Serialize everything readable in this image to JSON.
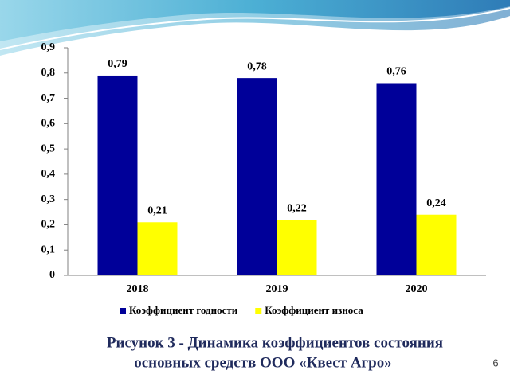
{
  "chart_data": {
    "type": "bar",
    "categories": [
      "2018",
      "2019",
      "2020"
    ],
    "series": [
      {
        "name": "Коэффициент годности",
        "color": "#000099",
        "values": [
          0.79,
          0.78,
          0.76
        ],
        "value_labels": [
          "0,79",
          "0,78",
          "0,76"
        ]
      },
      {
        "name": "Коэффициент износа",
        "color": "#ffff00",
        "values": [
          0.21,
          0.22,
          0.24
        ],
        "value_labels": [
          "0,21",
          "0,22",
          "0,24"
        ]
      }
    ],
    "ylim": [
      0,
      0.9
    ],
    "yticks": [
      0,
      {
        "value": 0.1,
        "label": "0,1"
      },
      {
        "value": 0.2,
        "label": "0,2"
      },
      {
        "value": 0.3,
        "label": "0,3"
      },
      {
        "value": 0.4,
        "label": "0,4"
      },
      {
        "value": 0.5,
        "label": "0,5"
      },
      {
        "value": 0.6,
        "label": "0,6"
      },
      {
        "value": 0.7,
        "label": "0,7"
      },
      {
        "value": 0.8,
        "label": "0,8"
      },
      {
        "value": 0.9,
        "label": "0,9"
      }
    ],
    "grid": false,
    "legend": "bottom"
  },
  "caption_lines": [
    "Рисунок 3 - Динамика коэффициентов состояния",
    "основных средств  ООО «Квест Агро»"
  ],
  "page_number": "6"
}
